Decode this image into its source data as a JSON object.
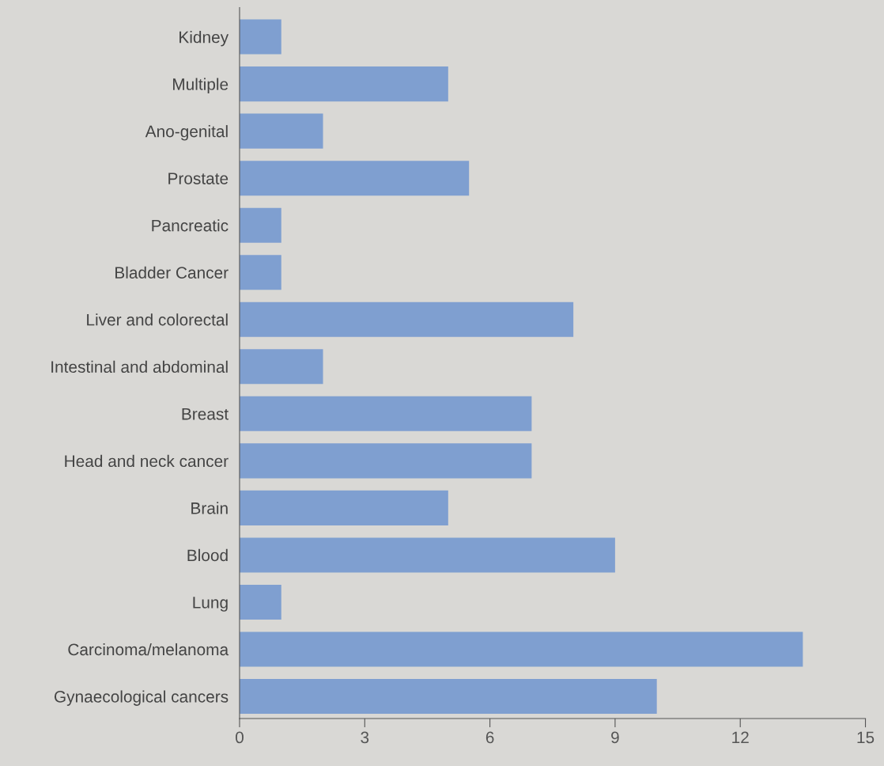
{
  "chart_data": {
    "type": "bar",
    "orientation": "horizontal",
    "categories": [
      "Kidney",
      "Multiple",
      "Ano-genital",
      "Prostate",
      "Pancreatic",
      "Bladder Cancer",
      "Liver and colorectal",
      "Intestinal and abdominal",
      "Breast",
      "Head and neck cancer",
      "Brain",
      "Blood",
      "Lung",
      "Carcinoma/melanoma",
      "Gynaecological cancers"
    ],
    "values": [
      1,
      5,
      2,
      5.5,
      1,
      1,
      8,
      2,
      7,
      7,
      5,
      9,
      1,
      13.5,
      10
    ],
    "color": "#7f9fd0",
    "xlim": [
      0,
      15
    ],
    "xticks": [
      0,
      3,
      6,
      9,
      12,
      15
    ],
    "grid": false,
    "legend": false
  }
}
